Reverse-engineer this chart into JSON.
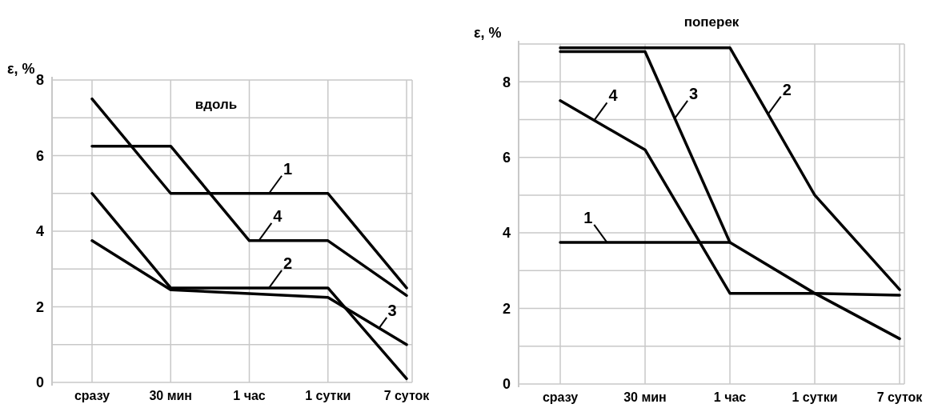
{
  "chart_data": [
    {
      "type": "line",
      "title": "вдоль",
      "ylabel": "ε, %",
      "categories": [
        "сразу",
        "30 мин",
        "1 час",
        "1 сутки",
        "7 суток"
      ],
      "ylim": [
        0,
        8
      ],
      "yticks": [
        0,
        {
          "value": 1,
          "label": null
        },
        2,
        {
          "value": 3,
          "label": null
        },
        4,
        {
          "value": 5,
          "label": null
        },
        6,
        {
          "value": 7,
          "label": null
        },
        8
      ],
      "grid": true,
      "series": [
        {
          "name": "1",
          "color": "#000000",
          "values": [
            7.5,
            5,
            5,
            5,
            2.5
          ]
        },
        {
          "name": "2",
          "color": "#000000",
          "values": [
            5,
            2.5,
            2.5,
            2.5,
            0.1
          ]
        },
        {
          "name": "3",
          "color": "#000000",
          "values": [
            3.75,
            2.45,
            2.35,
            2.25,
            1
          ]
        },
        {
          "name": "4",
          "color": "#000000",
          "values": [
            6.25,
            6.25,
            3.75,
            3.75,
            2.3
          ]
        }
      ]
    },
    {
      "type": "line",
      "title": "поперек",
      "ylabel": "ε, %",
      "categories": [
        "сразу",
        "30 мин",
        "1 час",
        "1 сутки",
        "7 суток"
      ],
      "ylim": [
        0,
        9
      ],
      "yticks": [
        0,
        {
          "value": 1,
          "label": null
        },
        2,
        {
          "value": 3,
          "label": null
        },
        4,
        {
          "value": 5,
          "label": null
        },
        6,
        {
          "value": 7,
          "label": null
        },
        8,
        {
          "value": 9,
          "label": null
        }
      ],
      "grid": true,
      "series": [
        {
          "name": "1",
          "color": "#000000",
          "values": [
            3.75,
            3.75,
            3.75,
            null,
            null
          ]
        },
        {
          "name": "2",
          "color": "#000000",
          "values": [
            8.9,
            8.9,
            8.9,
            5,
            2.5
          ]
        },
        {
          "name": "3",
          "color": "#000000",
          "values": [
            8.8,
            8.8,
            3.75,
            2.4,
            1.2
          ]
        },
        {
          "name": "4",
          "color": "#000000",
          "values": [
            7.5,
            6.2,
            2.4,
            2.4,
            2.35
          ]
        }
      ]
    }
  ]
}
